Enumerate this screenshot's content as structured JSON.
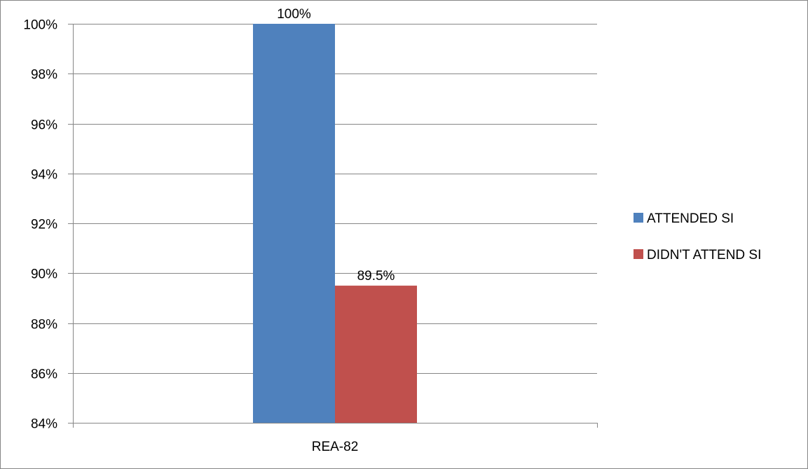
{
  "chart_data": {
    "type": "bar",
    "categories": [
      "REA-82"
    ],
    "series": [
      {
        "name": "ATTENDED SI",
        "values": [
          100
        ],
        "color": "#4F81BD",
        "data_label": "100%"
      },
      {
        "name": "DIDN'T ATTEND SI",
        "values": [
          89.5
        ],
        "color": "#C0504D",
        "data_label": "89.5%"
      }
    ],
    "title": "",
    "xlabel": "",
    "ylabel": "",
    "ylim": [
      84,
      100
    ],
    "y_ticks": [
      "84%",
      "86%",
      "88%",
      "90%",
      "92%",
      "94%",
      "96%",
      "98%",
      "100%"
    ],
    "y_tick_values": [
      84,
      86,
      88,
      90,
      92,
      94,
      96,
      98,
      100
    ],
    "grid": true,
    "legend_position": "right"
  }
}
